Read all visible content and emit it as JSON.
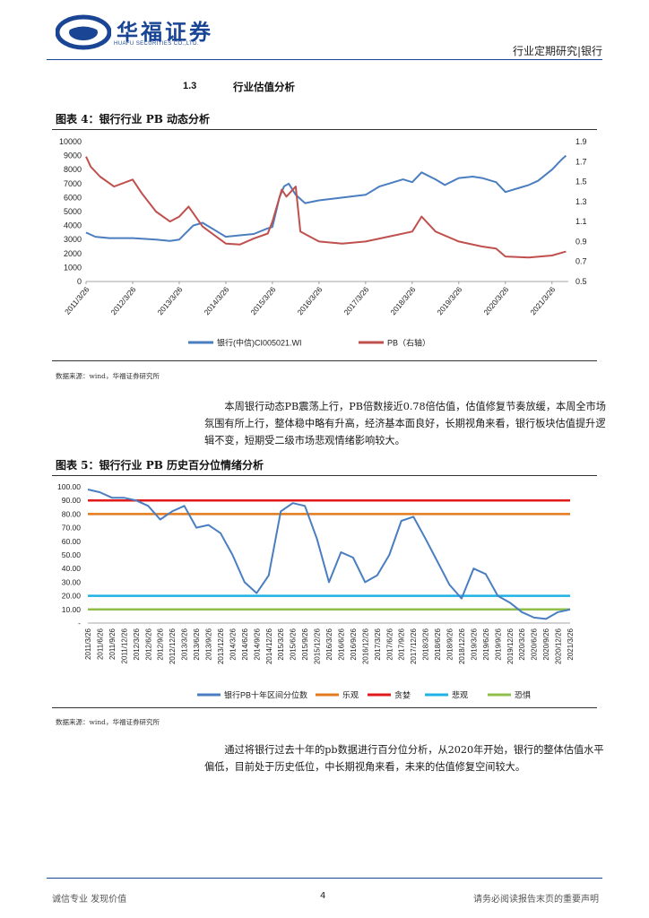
{
  "header": {
    "logo_cn": "华福证券",
    "logo_en": "HUAFU SECURITIES CO.,LTD.",
    "report_type": "行业定期研究|银行"
  },
  "section": {
    "number": "1.3",
    "title": "行业估值分析"
  },
  "figure4": {
    "title": "图表 4：银行行业 PB 动态分析",
    "source": "数据来源：wind，华福证券研究所"
  },
  "paragraph1": "本周银行动态PB震荡上行，PB倍数接近0.78倍估值，估值修复节奏放缓，本周全市场氛围有所上行，整体稳中略有升高，经济基本面良好，长期视角来看，银行板块估值提升逻辑不变，短期受二级市场悲观情绪影响较大。",
  "figure5": {
    "title": "图表 5：银行行业 PB 历史百分位情绪分析",
    "source": "数据来源：wind，华福证券研究所"
  },
  "paragraph2": "通过将银行过去十年的pb数据进行百分位分析，从2020年开始，银行的整体估值水平偏低，目前处于历史低位，中长期视角来看，未来的估值修复空间较大。",
  "footer": {
    "left": "诚信专业  发现价值",
    "page": "4",
    "right": "请务必阅读报告末页的重要声明"
  },
  "chart_data": [
    {
      "type": "line",
      "title": "银行行业 PB 动态分析",
      "x_categories": [
        "2011/3/26",
        "2012/3/26",
        "2013/3/26",
        "2014/3/26",
        "2015/3/26",
        "2016/3/26",
        "2017/3/26",
        "2018/3/26",
        "2019/3/26",
        "2020/3/26",
        "2021/3/26"
      ],
      "y_left": {
        "range": [
          0,
          10000
        ],
        "ticks": [
          "0",
          "1000",
          "2000",
          "3000",
          "4000",
          "5000",
          "6000",
          "7000",
          "8000",
          "9000",
          "10000"
        ]
      },
      "y_right": {
        "range": [
          0.5,
          1.9
        ],
        "ticks": [
          "0.5",
          "0.7",
          "0.9",
          "1.1",
          "1.3",
          "1.5",
          "1.7",
          "1.9"
        ]
      },
      "series": [
        {
          "name": "银行(中信)CI005021.WI",
          "axis": "left",
          "color": "#4a7ec0",
          "x": [
            0,
            0.2,
            0.5,
            1,
            1.5,
            1.8,
            2,
            2.3,
            2.5,
            2.8,
            3,
            3.3,
            3.6,
            3.9,
            4,
            4.15,
            4.25,
            4.35,
            4.5,
            4.7,
            5,
            5.5,
            6,
            6.3,
            6.5,
            6.8,
            7,
            7.2,
            7.5,
            7.7,
            8,
            8.3,
            8.5,
            8.8,
            9,
            9.3,
            9.5,
            9.7,
            10,
            10.2,
            10.3
          ],
          "values": [
            3500,
            3200,
            3100,
            3100,
            3000,
            2900,
            3000,
            4000,
            4200,
            3600,
            3200,
            3300,
            3400,
            3800,
            3900,
            6000,
            6800,
            7000,
            6200,
            5600,
            5800,
            6000,
            6200,
            6800,
            7000,
            7300,
            7100,
            7800,
            7300,
            6900,
            7400,
            7500,
            7400,
            7100,
            6400,
            6700,
            6900,
            7200,
            8000,
            8700,
            9000
          ]
        },
        {
          "name": "PB（右轴）",
          "axis": "right",
          "color": "#c0504d",
          "x": [
            0,
            0.1,
            0.3,
            0.6,
            1,
            1.2,
            1.5,
            1.8,
            2,
            2.2,
            2.5,
            3,
            3.3,
            3.6,
            3.9,
            4,
            4.2,
            4.3,
            4.5,
            4.6,
            4.8,
            5,
            5.5,
            6,
            6.5,
            7,
            7.2,
            7.5,
            8,
            8.5,
            8.8,
            9,
            9.5,
            10,
            10.3
          ],
          "values": [
            1.75,
            1.65,
            1.55,
            1.45,
            1.52,
            1.38,
            1.2,
            1.1,
            1.15,
            1.25,
            1.05,
            0.88,
            0.87,
            0.93,
            0.98,
            1.1,
            1.42,
            1.35,
            1.45,
            1.0,
            0.95,
            0.9,
            0.88,
            0.9,
            0.95,
            1.0,
            1.15,
            1.0,
            0.9,
            0.85,
            0.83,
            0.75,
            0.74,
            0.76,
            0.8
          ]
        }
      ],
      "legend": [
        "银行(中信)CI005021.WI",
        "PB（右轴）"
      ]
    },
    {
      "type": "line",
      "title": "银行行业 PB 历史百分位情绪分析",
      "y": {
        "range": [
          0,
          100
        ],
        "ticks": [
          "-",
          "10.00",
          "20.00",
          "30.00",
          "40.00",
          "50.00",
          "60.00",
          "70.00",
          "80.00",
          "90.00",
          "100.00"
        ]
      },
      "x_categories": [
        "2011/3/26",
        "2011/6/26",
        "2011/9/26",
        "2011/12/26",
        "2012/3/26",
        "2012/6/26",
        "2012/9/26",
        "2012/12/26",
        "2013/3/26",
        "2013/6/26",
        "2013/9/26",
        "2013/12/26",
        "2014/3/26",
        "2014/6/26",
        "2014/9/26",
        "2014/12/26",
        "2015/3/26",
        "2015/6/26",
        "2015/9/26",
        "2015/12/26",
        "2016/3/26",
        "2016/6/26",
        "2016/9/26",
        "2016/12/26",
        "2017/3/26",
        "2017/6/26",
        "2017/9/26",
        "2017/12/26",
        "2018/3/26",
        "2018/6/26",
        "2018/9/26",
        "2018/12/26",
        "2019/3/26",
        "2019/6/26",
        "2019/9/26",
        "2019/12/26",
        "2020/3/26",
        "2020/6/26",
        "2020/9/26",
        "2020/12/26",
        "2021/3/26"
      ],
      "series": [
        {
          "name": "银行PB十年区间分位数",
          "color": "#4a7ec0",
          "x": [
            0,
            1,
            2,
            3,
            4,
            5,
            6,
            7,
            8,
            9,
            10,
            11,
            12,
            13,
            14,
            15,
            16,
            17,
            18,
            19,
            20,
            21,
            22,
            23,
            24,
            25,
            26,
            27,
            28,
            29,
            30,
            31,
            32,
            33,
            34,
            35,
            36,
            37,
            38,
            39,
            40
          ],
          "values": [
            98,
            96,
            92,
            92,
            90,
            86,
            76,
            82,
            86,
            70,
            72,
            66,
            50,
            30,
            22,
            35,
            82,
            88,
            86,
            62,
            30,
            52,
            48,
            30,
            35,
            50,
            75,
            78,
            62,
            45,
            28,
            18,
            40,
            36,
            20,
            15,
            8,
            4,
            3,
            8,
            10
          ]
        },
        {
          "name": "乐观",
          "color": "#e37b1d",
          "values": [
            80
          ]
        },
        {
          "name": "贪婪",
          "color": "#e11919",
          "values": [
            90
          ]
        },
        {
          "name": "悲观",
          "color": "#1fb2e3",
          "values": [
            20
          ]
        },
        {
          "name": "恐惧",
          "color": "#8fbe4b",
          "values": [
            10
          ]
        }
      ],
      "legend": [
        "银行PB十年区间分位数",
        "乐观",
        "贪婪",
        "悲观",
        "恐惧"
      ]
    }
  ]
}
